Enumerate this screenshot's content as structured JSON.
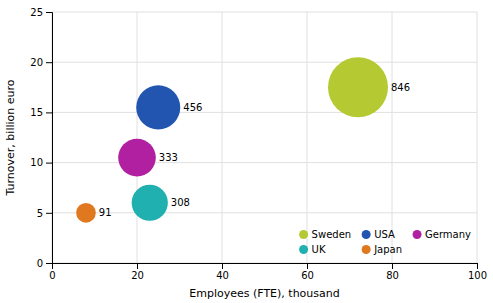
{
  "chart_data": {
    "type": "scatter",
    "xlabel": "Employees (FTE), thousand",
    "ylabel": "Turnover, billion euro",
    "series": [
      {
        "name": "Sweden",
        "color": "#b5c932",
        "x": [
          72
        ],
        "values": [
          17.5
        ],
        "sizes": [
          846
        ]
      },
      {
        "name": "USA",
        "color": "#2255b0",
        "x": [
          25
        ],
        "values": [
          15.5
        ],
        "sizes": [
          456
        ]
      },
      {
        "name": "Germany",
        "color": "#b020a0",
        "x": [
          20
        ],
        "values": [
          10.5
        ],
        "sizes": [
          333
        ]
      },
      {
        "name": "UK",
        "color": "#20b0b0",
        "x": [
          23
        ],
        "values": [
          6.0
        ],
        "sizes": [
          308
        ]
      },
      {
        "name": "Japan",
        "color": "#e07820",
        "x": [
          8
        ],
        "values": [
          5.0
        ],
        "sizes": [
          91
        ]
      }
    ],
    "xlim": [
      0,
      100
    ],
    "ylim": [
      0,
      25
    ],
    "xticks": [
      0,
      20,
      40,
      60,
      80,
      100
    ],
    "yticks": [
      0,
      5,
      10,
      15,
      20,
      25
    ],
    "grid": true,
    "data_labels": true,
    "legend": "lower right"
  }
}
